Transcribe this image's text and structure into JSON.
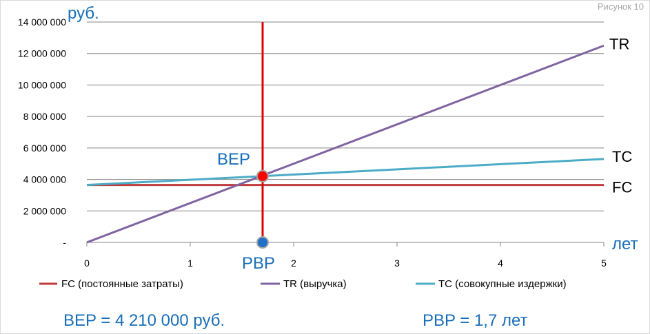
{
  "figure_label": "Рисунок 10",
  "colors": {
    "fc": "#c0393b",
    "tr": "#8064a2",
    "tc": "#4bacc6",
    "marker_line": "#e00000",
    "bep_point": "#ff0000",
    "pbp_point": "#1f6fc4",
    "accent_text": "#1a6fb8",
    "grid": "#868686"
  },
  "chart_data": {
    "type": "line",
    "title": "",
    "xlabel": "лет",
    "ylabel": "руб.",
    "xlim": [
      0,
      5
    ],
    "ylim": [
      0,
      14000000
    ],
    "x_ticks": [
      0,
      1,
      2,
      3,
      4,
      5
    ],
    "x_tick_labels": [
      "0",
      "1",
      "2",
      "3",
      "4",
      "5"
    ],
    "y_ticks": [
      0,
      2000000,
      4000000,
      6000000,
      8000000,
      10000000,
      12000000,
      14000000
    ],
    "y_tick_labels": [
      "-",
      "2 000 000",
      "4 000 000",
      "6 000 000",
      "8 000 000",
      "10 000 000",
      "12 000 000",
      "14 000 000"
    ],
    "grid": "horizontal",
    "series": [
      {
        "key": "fc",
        "name": "FC (постоянные затраты)",
        "short": "FC",
        "x": [
          0,
          5
        ],
        "values": [
          3650000,
          3650000
        ]
      },
      {
        "key": "tr",
        "name": "TR (выручка)",
        "short": "TR",
        "x": [
          0,
          5
        ],
        "values": [
          0,
          12500000
        ]
      },
      {
        "key": "tc",
        "name": "TC (совокупные издержки)",
        "short": "TC",
        "x": [
          0,
          5
        ],
        "values": [
          3650000,
          5300000
        ]
      }
    ],
    "annotations": {
      "break_even_x": 1.7,
      "break_even_y": 4210000,
      "bep_label": "BEP",
      "pbp_label": "PBP"
    },
    "legend_position": "bottom"
  },
  "footer": {
    "bep_text": "BEP = 4 210 000 руб.",
    "pbp_text": "PBP = 1,7 лет"
  }
}
